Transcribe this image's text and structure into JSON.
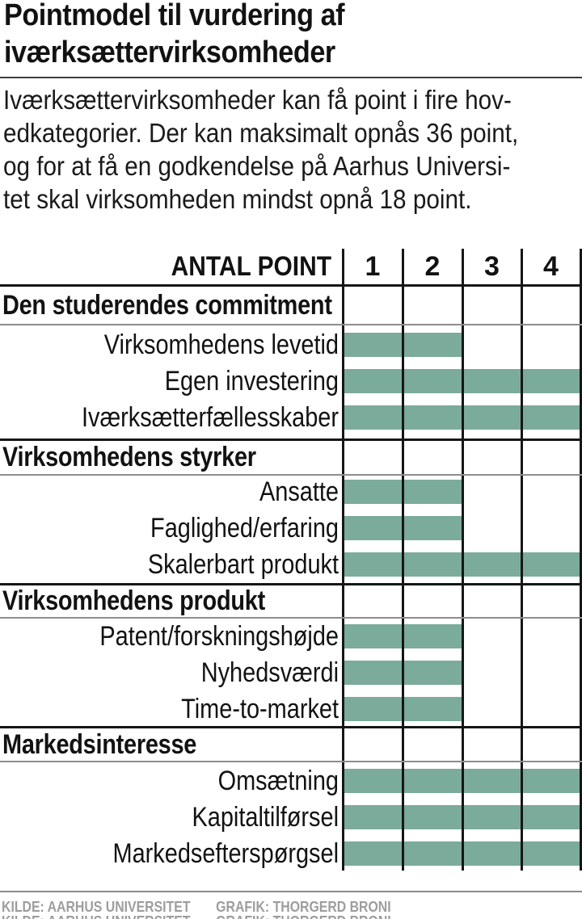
{
  "title": {
    "line1": "Pointmodel til vurdering af",
    "line2": "iværksættervirksomheder"
  },
  "intro": {
    "lines": [
      "Iværksættervirksomheder kan få point i fire hov-",
      "edkategorier. Der kan maksimalt opnås 36 point,",
      "og for at få en godkendelse på Aarhus Universi-",
      "tet skal virksomheden mindst opnå 18 point."
    ]
  },
  "chart_data": {
    "type": "bar",
    "title": "Pointmodel til vurdering af iværksættervirksomheder",
    "header_label": "ANTAL POINT",
    "point_columns": [
      "1",
      "2",
      "3",
      "4"
    ],
    "xlim": [
      0,
      4
    ],
    "max_points_total": 36,
    "approval_threshold_points": 18,
    "grid": "vertical-lines-on",
    "bar_color": "#7bab9a",
    "grid_line_color": "#161616",
    "divider_line_color": "#8d8d8d",
    "sections": [
      {
        "label": "Den studerendes commitment",
        "rows": [
          {
            "label": "Virksomhedens levetid",
            "points": 2
          },
          {
            "label": "Egen investering",
            "points": 4
          },
          {
            "label": "Iværksætterfællesskaber",
            "points": 4
          }
        ]
      },
      {
        "label": "Virksomhedens styrker",
        "rows": [
          {
            "label": "Ansatte",
            "points": 2
          },
          {
            "label": "Faglighed/erfaring",
            "points": 2
          },
          {
            "label": "Skalerbart produkt",
            "points": 4
          }
        ]
      },
      {
        "label": "Virksomhedens produkt",
        "rows": [
          {
            "label": "Patent/forskningshøjde",
            "points": 2
          },
          {
            "label": "Nyhedsværdi",
            "points": 2
          },
          {
            "label": "Time-to-market",
            "points": 2
          }
        ]
      },
      {
        "label": "Markedsinteresse",
        "rows": [
          {
            "label": "Omsætning",
            "points": 4
          },
          {
            "label": "Kapitaltilførsel",
            "points": 4
          },
          {
            "label": "Markedsefterspørgsel",
            "points": 4
          }
        ]
      }
    ]
  },
  "footer": {
    "source": "KILDE: AARHUS UNIVERSITET",
    "credit": "GRAFIK: THORGERD BRONI",
    "credit_text_color": "#9d9d9d"
  }
}
